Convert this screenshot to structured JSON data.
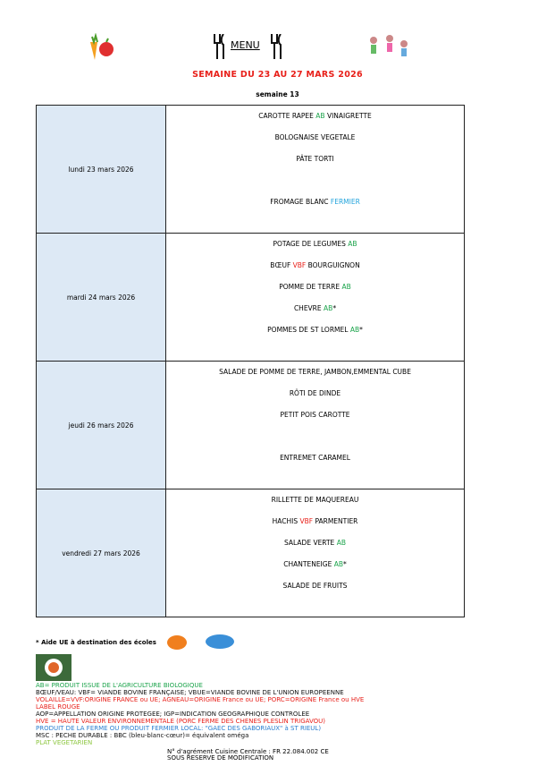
{
  "header": {
    "title": "MENU",
    "week": "SEMAINE DU 23 AU 27 MARS 2026",
    "week_number": "semaine 13"
  },
  "colors": {
    "AB": "#1aa34a",
    "VBF": "#e8201a",
    "FERMIER": "#21a3dc",
    "title": "#e8201a"
  },
  "days": [
    {
      "label": "lundi 23 mars 2026",
      "dishes": [
        [
          {
            "t": "CAROTTE RAPEE "
          },
          {
            "t": "AB",
            "c": "ab"
          },
          {
            "t": " VINAIGRETTE"
          }
        ],
        [
          {
            "t": "BOLOGNAISE VEGETALE"
          }
        ],
        [
          {
            "t": "PÂTE TORTI"
          }
        ],
        [
          {
            "t": ""
          }
        ],
        [
          {
            "t": "FROMAGE BLANC "
          },
          {
            "t": "FERMIER",
            "c": "cyan"
          }
        ]
      ]
    },
    {
      "label": "mardi 24 mars 2026",
      "dishes": [
        [
          {
            "t": "POTAGE DE LEGUMES "
          },
          {
            "t": "AB",
            "c": "ab"
          }
        ],
        [
          {
            "t": "BŒUF "
          },
          {
            "t": "VBF",
            "c": "red"
          },
          {
            "t": " BOURGUIGNON"
          }
        ],
        [
          {
            "t": "POMME DE TERRE "
          },
          {
            "t": "AB",
            "c": "ab"
          }
        ],
        [
          {
            "t": "CHEVRE "
          },
          {
            "t": "AB",
            "c": "ab"
          },
          {
            "t": "*"
          }
        ],
        [
          {
            "t": "POMMES DE ST LORMEL "
          },
          {
            "t": "AB",
            "c": "ab"
          },
          {
            "t": "*"
          }
        ]
      ]
    },
    {
      "label": "jeudi 26 mars 2026",
      "dishes": [
        [
          {
            "t": "SALADE DE POMME DE TERRE, JAMBON,EMMENTAL CUBE"
          }
        ],
        [
          {
            "t": "RÔTI DE DINDE"
          }
        ],
        [
          {
            "t": "PETIT POIS CAROTTE"
          }
        ],
        [
          {
            "t": ""
          }
        ],
        [
          {
            "t": "ENTREMET CARAMEL"
          }
        ]
      ]
    },
    {
      "label": "vendredi 27 mars 2026",
      "dishes": [
        [
          {
            "t": "RILLETTE DE MAQUEREAU"
          }
        ],
        [
          {
            "t": "HACHIS "
          },
          {
            "t": "VBF",
            "c": "red"
          },
          {
            "t": " PARMENTIER"
          }
        ],
        [
          {
            "t": "SALADE VERTE "
          },
          {
            "t": "AB",
            "c": "ab"
          }
        ],
        [
          {
            "t": "CHANTENEIGE "
          },
          {
            "t": "AB",
            "c": "ab"
          },
          {
            "t": "*"
          }
        ],
        [
          {
            "t": "SALADE DE FRUITS"
          }
        ]
      ]
    }
  ],
  "footer": {
    "aid": "* Aide UE à destination des écoles",
    "legend": [
      {
        "t": "AB= PRODUIT ISSUE DE L'AGRICULTURE BIOLOGIQUE",
        "color": "#1aa34a"
      },
      {
        "t": "BŒUF/VEAU: VBF= VIANDE BOVINE FRANÇAISE;  VBUE=VIANDE BOVINE DE L'UNION EUROPEENNE",
        "color": "#111"
      },
      {
        "t": "VOLAILLE=VVF:ORIGINE FRANCE ou UE;  AGNEAU=ORIGINE France ou UE;  PORC=ORIGINE France ou HVE",
        "color": "#e8201a"
      },
      {
        "t": "LABEL ROUGE",
        "color": "#e8201a"
      },
      {
        "t": "AOP=APPELLATION ORIGINE PROTEGEE;  IGP=INDICATION GEOGRAPHIQUE CONTROLEE",
        "color": "#111"
      },
      {
        "t": "HVE =  HAUTE VALEUR ENVIRONNEMENTALE (PORC FERME DES CHENES PLESLIN TRIGAVOU)",
        "color": "#e8201a"
      },
      {
        "t": "PRODUIT DE LA FERME OU PRODUIT FERMIER LOCAL: \"GAEC DES GABORIAUX\" à ST RIEUL)",
        "color": "#2a7fd0"
      },
      {
        "t": "MSC : PECHE DURABLE : BBC (bleu-blanc-cœur)= équivalent oméga",
        "color": "#111"
      },
      {
        "t": "PLAT VEGETARIEN",
        "color": "#8cc63f"
      }
    ],
    "agrement": "N° d'agrément Cuisine Centrale : FR 22.084.002 CE",
    "reserve": "SOUS RESERVE DE MODIFICATION"
  }
}
